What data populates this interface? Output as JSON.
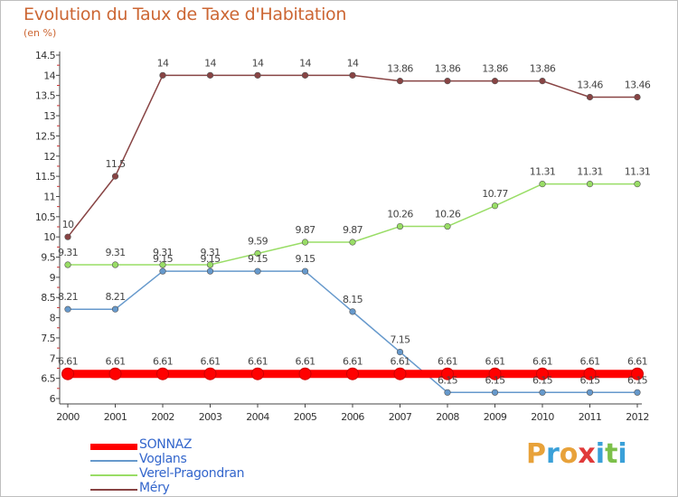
{
  "title": "Evolution du Taux de Taxe d'Habitation",
  "subtitle": "(en %)",
  "brand": [
    "P",
    "r",
    "o",
    "x",
    "i",
    "t",
    "i"
  ],
  "brand_colors": [
    "#e8a23a",
    "#3aa0d8",
    "#e8a23a",
    "#e03a3a",
    "#3aa0d8",
    "#7cc04a",
    "#3aa0d8"
  ],
  "chart_data": {
    "type": "line",
    "x": [
      "2000",
      "2001",
      "2002",
      "2003",
      "2004",
      "2005",
      "2006",
      "2007",
      "2008",
      "2009",
      "2010",
      "2011",
      "2012"
    ],
    "ylim": [
      6,
      14.5
    ],
    "yticks": [
      6,
      6.5,
      7,
      7.5,
      8,
      8.5,
      9,
      9.5,
      10,
      10.5,
      11,
      11.5,
      12,
      12.5,
      13,
      13.5,
      14,
      14.5
    ],
    "grid": false,
    "legend_position": "bottom-left",
    "series": [
      {
        "name": "SONNAZ",
        "color": "#ff0000",
        "values": [
          6.61,
          6.61,
          6.61,
          6.61,
          6.61,
          6.61,
          6.61,
          6.61,
          6.61,
          6.61,
          6.61,
          6.61,
          6.61
        ],
        "labels": [
          "6.61",
          "6.61",
          "6.61",
          "6.61",
          "6.61",
          "6.61",
          "6.61",
          "6.61",
          "6.61",
          "6.61",
          "6.61",
          "6.61",
          "6.61"
        ]
      },
      {
        "name": "Voglans",
        "color": "#6699cc",
        "values": [
          8.21,
          8.21,
          9.15,
          9.15,
          9.15,
          9.15,
          8.15,
          7.15,
          6.15,
          6.15,
          6.15,
          6.15,
          6.15
        ],
        "labels": [
          "8.21",
          "8.21",
          "9.15",
          "9.15",
          "9.15",
          "9.15",
          "8.15",
          "7.15",
          "6.15",
          "6.15",
          "6.15",
          "6.15",
          "6.15"
        ]
      },
      {
        "name": "Verel-Pragondran",
        "color": "#99dd66",
        "values": [
          9.31,
          9.31,
          9.31,
          9.31,
          9.59,
          9.87,
          9.87,
          10.26,
          10.26,
          10.77,
          11.31,
          11.31,
          11.31
        ],
        "labels": [
          "9.31",
          "9.31",
          "9.31",
          "9.31",
          "9.59",
          "9.87",
          "9.87",
          "10.26",
          "10.26",
          "10.77",
          "11.31",
          "11.31",
          "11.31"
        ]
      },
      {
        "name": "Méry",
        "color": "#884444",
        "values": [
          10,
          11.5,
          14,
          14,
          14,
          14,
          14,
          13.86,
          13.86,
          13.86,
          13.86,
          13.46,
          13.46
        ],
        "labels": [
          "10",
          "11.5",
          "14",
          "14",
          "14",
          "14",
          "14",
          "13.86",
          "13.86",
          "13.86",
          "13.86",
          "13.46",
          "13.46"
        ]
      }
    ]
  }
}
